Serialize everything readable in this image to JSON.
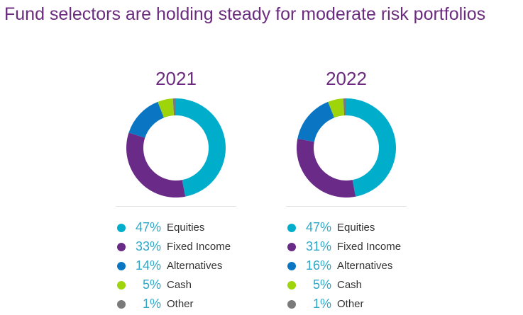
{
  "title": "Fund selectors are holding steady for moderate risk portfolios",
  "chart_data": [
    {
      "type": "pie",
      "title": "2021",
      "categories": [
        "Equities",
        "Fixed Income",
        "Alternatives",
        "Cash",
        "Other"
      ],
      "values": [
        47,
        33,
        14,
        5,
        1
      ],
      "labels": [
        "47%",
        "33%",
        "14%",
        "5%",
        "1%"
      ],
      "colors": [
        "#00aecb",
        "#6a2a87",
        "#0a75c2",
        "#9ed40a",
        "#7a7a7a"
      ]
    },
    {
      "type": "pie",
      "title": "2022",
      "categories": [
        "Equities",
        "Fixed Income",
        "Alternatives",
        "Cash",
        "Other"
      ],
      "values": [
        47,
        31,
        16,
        5,
        1
      ],
      "labels": [
        "47%",
        "31%",
        "16%",
        "5%",
        "1%"
      ],
      "colors": [
        "#00aecb",
        "#6a2a87",
        "#0a75c2",
        "#9ed40a",
        "#7a7a7a"
      ]
    }
  ]
}
